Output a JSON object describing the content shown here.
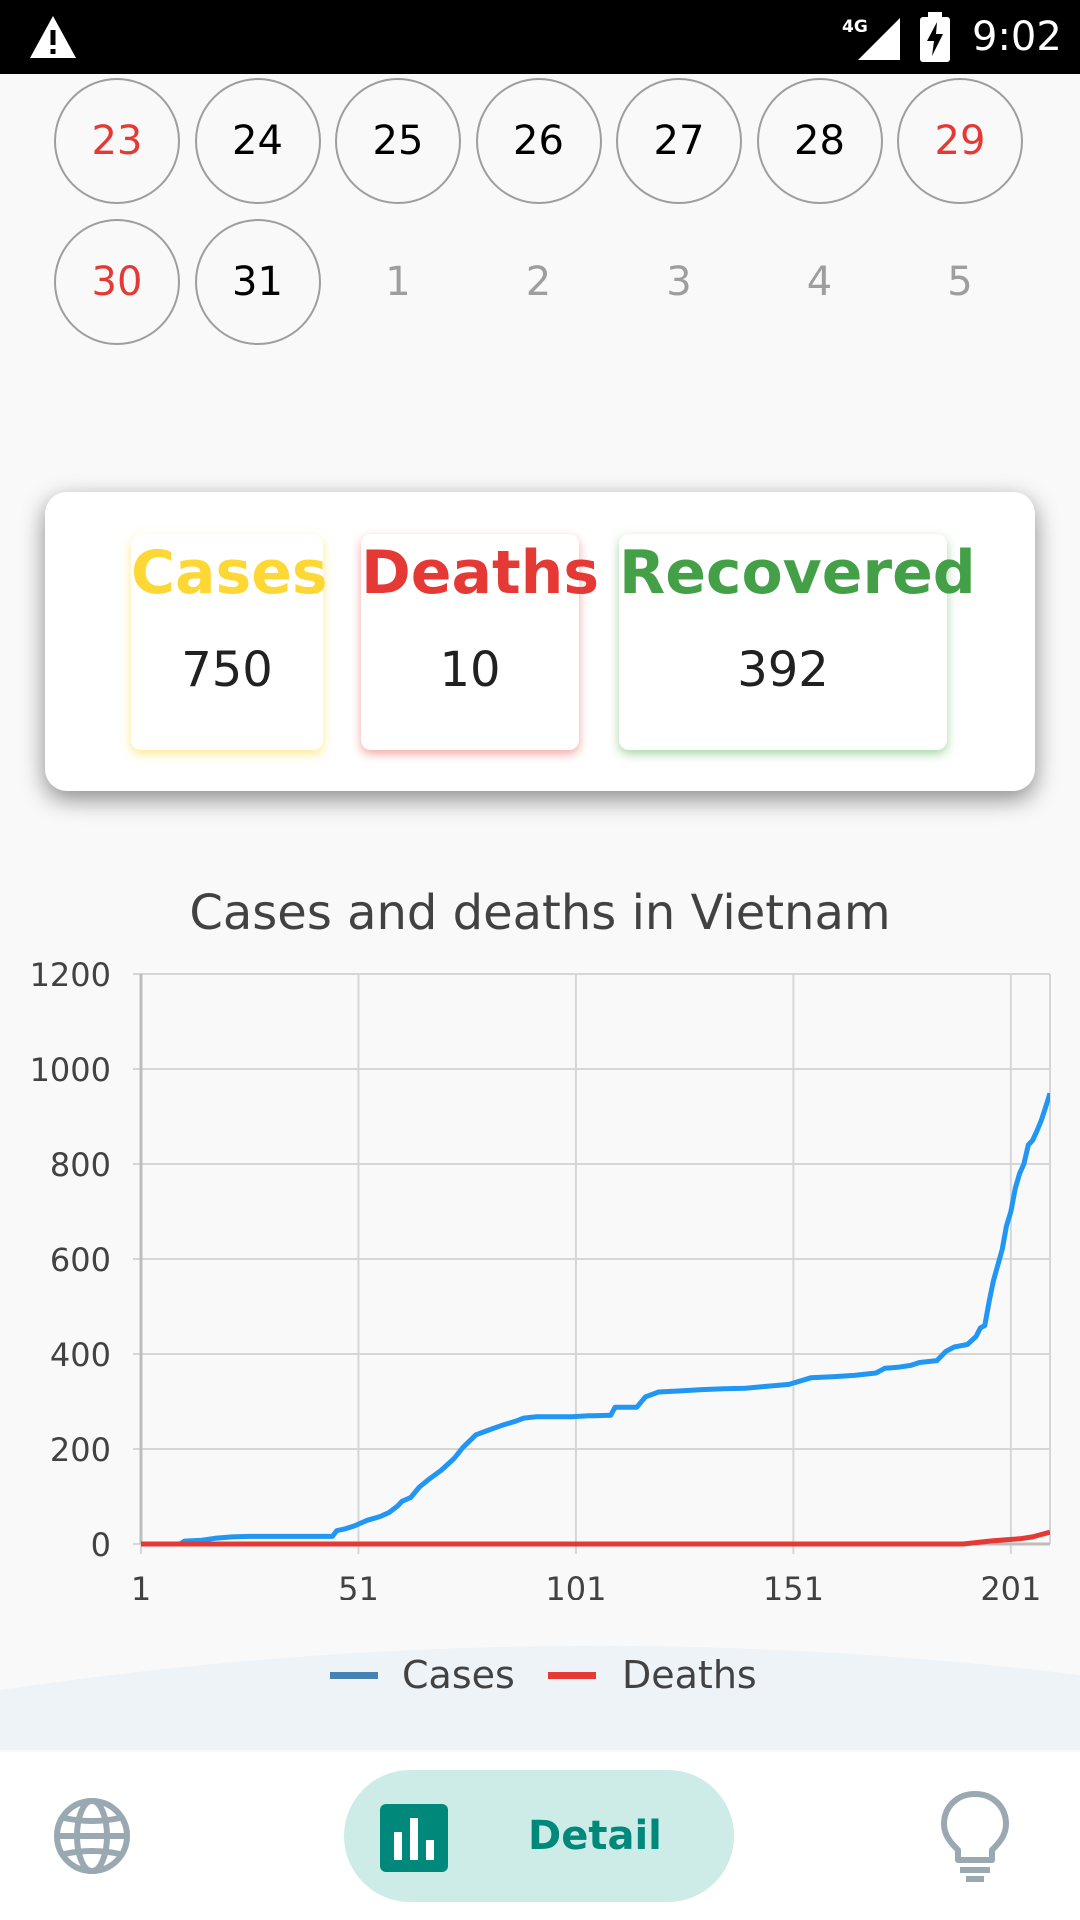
{
  "status_bar": {
    "network": "4G",
    "time": "9:02",
    "icons": [
      "warning-icon",
      "signal-icon",
      "battery-charging-icon"
    ]
  },
  "calendar": {
    "days": [
      {
        "label": "23",
        "style": "weekend",
        "circled": true
      },
      {
        "label": "24",
        "style": "normal",
        "circled": true
      },
      {
        "label": "25",
        "style": "normal",
        "circled": true
      },
      {
        "label": "26",
        "style": "normal",
        "circled": true
      },
      {
        "label": "27",
        "style": "normal",
        "circled": true
      },
      {
        "label": "28",
        "style": "normal",
        "circled": true
      },
      {
        "label": "29",
        "style": "weekend",
        "circled": true
      },
      {
        "label": "30",
        "style": "weekend",
        "circled": true
      },
      {
        "label": "31",
        "style": "normal",
        "circled": true
      },
      {
        "label": "1",
        "style": "other",
        "circled": false
      },
      {
        "label": "2",
        "style": "other",
        "circled": false
      },
      {
        "label": "3",
        "style": "other",
        "circled": false
      },
      {
        "label": "4",
        "style": "other",
        "circled": false
      },
      {
        "label": "5",
        "style": "other",
        "circled": false
      }
    ]
  },
  "stats": {
    "cases": {
      "label": "Cases",
      "value": "750",
      "color": "#fdd835"
    },
    "deaths": {
      "label": "Deaths",
      "value": "10",
      "color": "#e53935"
    },
    "recovered": {
      "label": "Recovered",
      "value": "392",
      "color": "#43a047"
    }
  },
  "chart_data": {
    "type": "line",
    "title": "Cases and deaths in Vietnam",
    "xlabel": "",
    "ylabel": "",
    "xlim": [
      1,
      206
    ],
    "ylim": [
      0,
      1200
    ],
    "x_ticks": [
      "1",
      "51",
      "101",
      "151",
      "201"
    ],
    "y_ticks": [
      "0",
      "200",
      "400",
      "600",
      "800",
      "1000",
      "1200"
    ],
    "grid": true,
    "legend_position": "bottom",
    "series": [
      {
        "name": "Cases",
        "color": "#2196f3",
        "legend_color": "#4682b4",
        "points": [
          [
            1,
            0
          ],
          [
            10,
            0
          ],
          [
            11,
            6
          ],
          [
            15,
            8
          ],
          [
            18,
            12
          ],
          [
            22,
            15
          ],
          [
            26,
            16
          ],
          [
            45,
            16
          ],
          [
            46,
            28
          ],
          [
            48,
            32
          ],
          [
            50,
            38
          ],
          [
            53,
            50
          ],
          [
            56,
            58
          ],
          [
            58,
            66
          ],
          [
            60,
            80
          ],
          [
            61,
            90
          ],
          [
            63,
            98
          ],
          [
            65,
            120
          ],
          [
            67,
            135
          ],
          [
            70,
            155
          ],
          [
            73,
            180
          ],
          [
            75,
            203
          ],
          [
            78,
            230
          ],
          [
            81,
            240
          ],
          [
            84,
            250
          ],
          [
            87,
            258
          ],
          [
            89,
            265
          ],
          [
            92,
            268
          ],
          [
            100,
            268
          ],
          [
            104,
            270
          ],
          [
            105,
            270
          ],
          [
            109,
            271
          ],
          [
            110,
            288
          ],
          [
            115,
            288
          ],
          [
            117,
            310
          ],
          [
            120,
            320
          ],
          [
            124,
            322
          ],
          [
            130,
            325
          ],
          [
            135,
            327
          ],
          [
            140,
            328
          ],
          [
            145,
            332
          ],
          [
            150,
            336
          ],
          [
            155,
            350
          ],
          [
            160,
            352
          ],
          [
            165,
            355
          ],
          [
            170,
            360
          ],
          [
            172,
            370
          ],
          [
            175,
            372
          ],
          [
            178,
            376
          ],
          [
            180,
            382
          ],
          [
            184,
            386
          ],
          [
            186,
            405
          ],
          [
            188,
            415
          ],
          [
            191,
            420
          ],
          [
            193,
            437
          ],
          [
            194,
            455
          ],
          [
            195,
            460
          ],
          [
            196,
            510
          ],
          [
            197,
            555
          ],
          [
            199,
            620
          ],
          [
            200,
            670
          ],
          [
            201,
            700
          ],
          [
            202,
            748
          ],
          [
            203,
            780
          ],
          [
            204,
            800
          ],
          [
            205,
            840
          ],
          [
            206,
            850
          ],
          [
            207,
            870
          ],
          [
            208,
            892
          ],
          [
            209,
            920
          ],
          [
            210,
            949
          ]
        ]
      },
      {
        "name": "Deaths",
        "color": "#e53935",
        "legend_color": "#e53935",
        "points": [
          [
            1,
            0
          ],
          [
            190,
            0
          ],
          [
            193,
            3
          ],
          [
            195,
            5
          ],
          [
            197,
            7
          ],
          [
            200,
            9
          ],
          [
            203,
            11
          ],
          [
            206,
            15
          ],
          [
            208,
            20
          ],
          [
            210,
            25
          ]
        ]
      }
    ]
  },
  "bottom_nav": {
    "items": [
      {
        "icon": "globe-icon",
        "label": ""
      },
      {
        "icon": "bar-chart-icon",
        "label": "Detail",
        "active": true
      },
      {
        "icon": "lightbulb-icon",
        "label": ""
      }
    ]
  }
}
